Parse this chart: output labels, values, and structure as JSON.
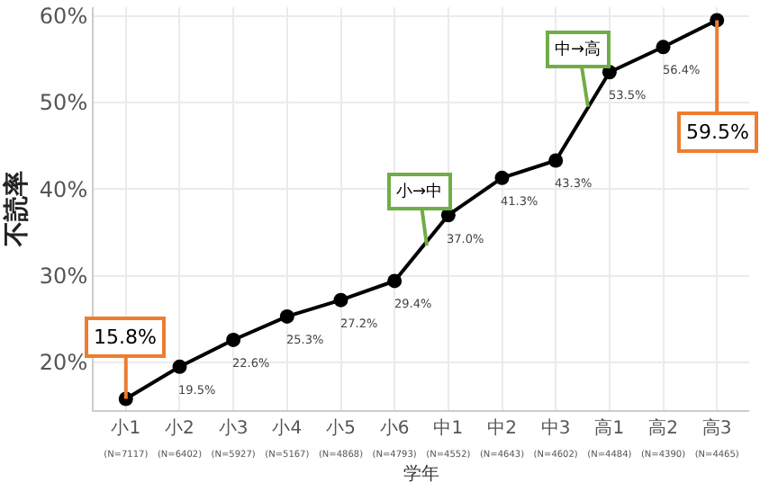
{
  "chart_data": {
    "type": "line",
    "categories": [
      "小1\n(N=7117)",
      "小2\n(N=6402)",
      "小3\n(N=5927)",
      "小4\n(N=5167)",
      "小5\n(N=4868)",
      "小6\n(N=4793)",
      "中1\n(N=4552)",
      "中2\n(N=4643)",
      "中3\n(N=4602)",
      "高1\n(N=4484)",
      "高2\n(N=4390)",
      "高3\n(N=4465)"
    ],
    "series": [
      {
        "color": "#000000",
        "values": [
          15.8,
          19.5,
          22.6,
          25.3,
          27.2,
          29.4,
          37.0,
          41.3,
          43.3,
          53.5,
          56.4,
          59.5
        ],
        "value_labels": [
          "15.8%",
          "19.5%",
          "22.6%",
          "25.3%",
          "27.2%",
          "29.4%",
          "37.0%",
          "41.3%",
          "43.3%",
          "53.5%",
          "56.4%",
          "59.5%"
        ]
      }
    ],
    "xlabel": "学年",
    "ylabel": "不読率",
    "ylim": [
      14.5,
      61
    ],
    "yticks": [
      {
        "value": 20,
        "label": "20%"
      },
      {
        "value": 30,
        "label": "30%"
      },
      {
        "value": 40,
        "label": "40%"
      },
      {
        "value": 50,
        "label": "50%"
      },
      {
        "value": 60,
        "label": "60%"
      }
    ],
    "annotations": [
      {
        "text": "小→中",
        "y": 33.5
      },
      {
        "text": "中→高",
        "y": 49.5
      }
    ],
    "grid": true,
    "marker": "circle",
    "line_style": "solid"
  }
}
